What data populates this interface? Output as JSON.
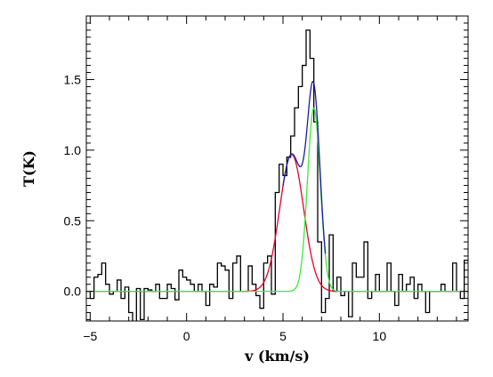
{
  "chart_data": {
    "type": "line",
    "title": "",
    "xlabel": "v (km/s)",
    "ylabel": "T(K)",
    "xlim": [
      -5.2,
      14.6
    ],
    "ylim": [
      -0.21,
      1.95
    ],
    "x_ticks": [
      -5,
      0,
      5,
      10
    ],
    "x_tick_labels": [
      "−5",
      "0",
      "5",
      "10"
    ],
    "y_ticks": [
      0.0,
      0.5,
      1.0,
      1.5
    ],
    "y_tick_labels": [
      "0.0",
      "0.5",
      "1.0",
      "1.5"
    ],
    "grid": false,
    "series": [
      {
        "kind": "step",
        "color": "#000000",
        "x": [
          -5.2,
          -5.0,
          -4.8,
          -4.6,
          -4.4,
          -4.2,
          -4.0,
          -3.8,
          -3.6,
          -3.4,
          -3.2,
          -3.0,
          -2.8,
          -2.6,
          -2.4,
          -2.2,
          -2.0,
          -1.8,
          -1.6,
          -1.4,
          -1.2,
          -1.0,
          -0.8,
          -0.6,
          -0.4,
          -0.2,
          0.0,
          0.2,
          0.4,
          0.6,
          0.8,
          1.0,
          1.2,
          1.4,
          1.6,
          1.8,
          2.0,
          2.2,
          2.4,
          2.6,
          2.8,
          3.0,
          3.2,
          3.4,
          3.6,
          3.8,
          4.0,
          4.2,
          4.4,
          4.6,
          4.8,
          5.0,
          5.2,
          5.4,
          5.6,
          5.8,
          6.0,
          6.2,
          6.4,
          6.6,
          6.8,
          7.0,
          7.2,
          7.4,
          7.6,
          7.8,
          8.0,
          8.2,
          8.4,
          8.6,
          8.8,
          9.0,
          9.2,
          9.4,
          9.6,
          9.8,
          10.0,
          10.2,
          10.4,
          10.6,
          10.8,
          11.0,
          11.2,
          11.4,
          11.6,
          11.8,
          12.0,
          12.2,
          12.4,
          12.6,
          12.8,
          13.0,
          13.2,
          13.4,
          13.6,
          13.8,
          14.0,
          14.2,
          14.4
        ],
        "y": [
          0.0,
          -0.05,
          0.1,
          0.12,
          0.2,
          0.05,
          -0.02,
          0.0,
          0.08,
          -0.05,
          0.03,
          -0.15,
          -0.22,
          0.02,
          -0.2,
          0.02,
          0.01,
          0.0,
          0.05,
          -0.05,
          -0.05,
          0.05,
          0.02,
          -0.06,
          0.15,
          0.1,
          0.08,
          0.05,
          0.0,
          0.05,
          0.0,
          -0.1,
          0.05,
          0.03,
          0.2,
          0.18,
          0.15,
          -0.05,
          0.2,
          0.25,
          0.0,
          0.0,
          0.18,
          0.05,
          -0.03,
          -0.12,
          0.2,
          0.25,
          -0.02,
          0.7,
          0.9,
          0.82,
          0.95,
          1.1,
          1.3,
          1.45,
          1.6,
          1.85,
          1.65,
          1.2,
          0.35,
          -0.15,
          -0.05,
          0.4,
          0.0,
          0.1,
          -0.03,
          0.0,
          -0.18,
          0.2,
          0.1,
          0.1,
          0.35,
          -0.05,
          0.0,
          0.12,
          0.0,
          0.0,
          0.2,
          0.0,
          -0.1,
          0.12,
          0.0,
          0.05,
          0.1,
          -0.05,
          0.05,
          0.0,
          -0.15,
          0.0,
          0.0,
          0.0,
          0.05,
          0.0,
          0.0,
          0.2,
          0.0,
          -0.05,
          0.22
        ]
      },
      {
        "kind": "gaussian",
        "color": "#e8002a",
        "amplitude": 0.97,
        "center": 5.45,
        "sigma": 0.62
      },
      {
        "kind": "gaussian",
        "color": "#3bea3b",
        "amplitude": 1.3,
        "center": 6.6,
        "sigma": 0.33
      },
      {
        "kind": "gaussian_sum",
        "color": "#1c1ca8",
        "components": [
          1,
          2
        ],
        "xrange": [
          5.0,
          7.2
        ]
      }
    ]
  }
}
